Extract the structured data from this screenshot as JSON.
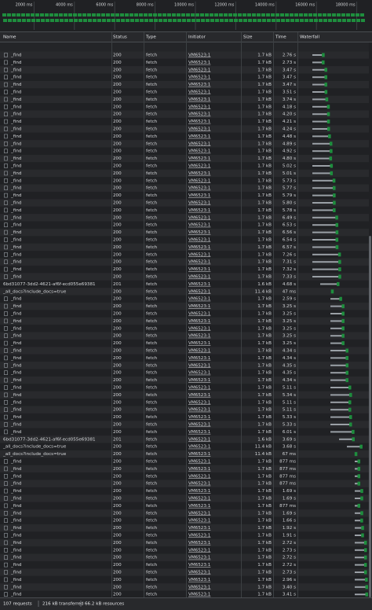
{
  "overview": {
    "ticks": [
      "2000 ms",
      "4000 ms",
      "6000 ms",
      "8000 ms",
      "10000 ms",
      "12000 ms",
      "14000 ms",
      "16000 ms",
      "18000 ms"
    ]
  },
  "columns": [
    "Name",
    "Status",
    "Type",
    "Initiator",
    "Size",
    "Time",
    "Waterfall"
  ],
  "rows": [
    [
      "_find",
      "200",
      "fetch",
      "VM6523:1",
      "1.7 kB",
      "2.76 s"
    ],
    [
      "_find",
      "200",
      "fetch",
      "VM6523:1",
      "1.7 kB",
      "2.73 s"
    ],
    [
      "_find",
      "200",
      "fetch",
      "VM6523:1",
      "1.7 kB",
      "3.47 s"
    ],
    [
      "_find",
      "200",
      "fetch",
      "VM6523:1",
      "1.7 kB",
      "3.47 s"
    ],
    [
      "_find",
      "200",
      "fetch",
      "VM6523:1",
      "1.7 kB",
      "3.47 s"
    ],
    [
      "_find",
      "200",
      "fetch",
      "VM6523:1",
      "1.7 kB",
      "3.51 s"
    ],
    [
      "_find",
      "200",
      "fetch",
      "VM6523:1",
      "1.7 kB",
      "3.74 s"
    ],
    [
      "_find",
      "200",
      "fetch",
      "VM6523:1",
      "1.7 kB",
      "4.18 s"
    ],
    [
      "_find",
      "200",
      "fetch",
      "VM6523:1",
      "1.7 kB",
      "4.20 s"
    ],
    [
      "_find",
      "200",
      "fetch",
      "VM6523:1",
      "1.7 kB",
      "4.21 s"
    ],
    [
      "_find",
      "200",
      "fetch",
      "VM6523:1",
      "1.7 kB",
      "4.24 s"
    ],
    [
      "_find",
      "200",
      "fetch",
      "VM6523:1",
      "1.7 kB",
      "4.48 s"
    ],
    [
      "_find",
      "200",
      "fetch",
      "VM6523:1",
      "1.7 kB",
      "4.89 s"
    ],
    [
      "_find",
      "200",
      "fetch",
      "VM6523:1",
      "1.7 kB",
      "4.92 s"
    ],
    [
      "_find",
      "200",
      "fetch",
      "VM6523:1",
      "1.7 kB",
      "4.80 s"
    ],
    [
      "_find",
      "200",
      "fetch",
      "VM6523:1",
      "1.7 kB",
      "5.02 s"
    ],
    [
      "_find",
      "200",
      "fetch",
      "VM6523:1",
      "1.7 kB",
      "5.01 s"
    ],
    [
      "_find",
      "200",
      "fetch",
      "VM6523:1",
      "1.7 kB",
      "5.73 s"
    ],
    [
      "_find",
      "200",
      "fetch",
      "VM6523:1",
      "1.7 kB",
      "5.77 s"
    ],
    [
      "_find",
      "200",
      "fetch",
      "VM6523:1",
      "1.7 kB",
      "5.79 s"
    ],
    [
      "_find",
      "200",
      "fetch",
      "VM6523:1",
      "1.7 kB",
      "5.80 s"
    ],
    [
      "_find",
      "200",
      "fetch",
      "VM6523:1",
      "1.7 kB",
      "5.78 s"
    ],
    [
      "_find",
      "200",
      "fetch",
      "VM6523:1",
      "1.7 kB",
      "6.49 s"
    ],
    [
      "_find",
      "200",
      "fetch",
      "VM6523:1",
      "1.7 kB",
      "6.53 s"
    ],
    [
      "_find",
      "200",
      "fetch",
      "VM6523:1",
      "1.7 kB",
      "6.56 s"
    ],
    [
      "_find",
      "200",
      "fetch",
      "VM6523:1",
      "1.7 kB",
      "6.54 s"
    ],
    [
      "_find",
      "200",
      "fetch",
      "VM6523:1",
      "1.7 kB",
      "6.57 s"
    ],
    [
      "_find",
      "200",
      "fetch",
      "VM6523:1",
      "1.7 kB",
      "7.26 s"
    ],
    [
      "_find",
      "200",
      "fetch",
      "VM6523:1",
      "1.7 kB",
      "7.31 s"
    ],
    [
      "_find",
      "200",
      "fetch",
      "VM6523:1",
      "1.7 kB",
      "7.32 s"
    ],
    [
      "_find",
      "200",
      "fetch",
      "VM6523:1",
      "1.7 kB",
      "7.33 s"
    ],
    [
      "6bd31077-3dd2-4621-af6f-ecd055e69381",
      "201",
      "fetch",
      "VM6523:1",
      "1.6 kB",
      "4.68 s"
    ],
    [
      "_all_docs?include_docs=true",
      "200",
      "fetch",
      "VM6523:1",
      "11.4 kB",
      "47 ms"
    ],
    [
      "_find",
      "200",
      "fetch",
      "VM6523:1",
      "1.7 kB",
      "2.59 s"
    ],
    [
      "_find",
      "200",
      "fetch",
      "VM6523:1",
      "1.7 kB",
      "3.25 s"
    ],
    [
      "_find",
      "200",
      "fetch",
      "VM6523:1",
      "1.7 kB",
      "3.25 s"
    ],
    [
      "_find",
      "200",
      "fetch",
      "VM6523:1",
      "1.7 kB",
      "3.25 s"
    ],
    [
      "_find",
      "200",
      "fetch",
      "VM6523:1",
      "1.7 kB",
      "3.25 s"
    ],
    [
      "_find",
      "200",
      "fetch",
      "VM6523:1",
      "1.7 kB",
      "3.25 s"
    ],
    [
      "_find",
      "200",
      "fetch",
      "VM6523:1",
      "1.7 kB",
      "3.25 s"
    ],
    [
      "_find",
      "200",
      "fetch",
      "VM6523:1",
      "1.7 kB",
      "4.34 s"
    ],
    [
      "_find",
      "200",
      "fetch",
      "VM6523:1",
      "1.7 kB",
      "4.34 s"
    ],
    [
      "_find",
      "200",
      "fetch",
      "VM6523:1",
      "1.7 kB",
      "4.35 s"
    ],
    [
      "_find",
      "200",
      "fetch",
      "VM6523:1",
      "1.7 kB",
      "4.35 s"
    ],
    [
      "_find",
      "200",
      "fetch",
      "VM6523:1",
      "1.7 kB",
      "4.34 s"
    ],
    [
      "_find",
      "200",
      "fetch",
      "VM6523:1",
      "1.7 kB",
      "5.11 s"
    ],
    [
      "_find",
      "200",
      "fetch",
      "VM6523:1",
      "1.7 kB",
      "5.34 s"
    ],
    [
      "_find",
      "200",
      "fetch",
      "VM6523:1",
      "1.7 kB",
      "5.11 s"
    ],
    [
      "_find",
      "200",
      "fetch",
      "VM6523:1",
      "1.7 kB",
      "5.11 s"
    ],
    [
      "_find",
      "200",
      "fetch",
      "VM6523:1",
      "1.7 kB",
      "5.33 s"
    ],
    [
      "_find",
      "200",
      "fetch",
      "VM6523:1",
      "1.7 kB",
      "5.33 s"
    ],
    [
      "_find",
      "200",
      "fetch",
      "VM6523:1",
      "1.7 kB",
      "6.01 s"
    ],
    [
      "6bd31077-3dd2-4621-af6f-ecd055e69381",
      "201",
      "fetch",
      "VM6523:1",
      "1.6 kB",
      "3.69 s"
    ],
    [
      "_all_docs?include_docs=true",
      "200",
      "fetch",
      "VM6523:1",
      "11.4 kB",
      "3.68 s"
    ],
    [
      "_all_docs?include_docs=true",
      "200",
      "fetch",
      "VM6523:1",
      "11.4 kB",
      "67 ms"
    ],
    [
      "_find",
      "200",
      "fetch",
      "VM6523:1",
      "1.7 kB",
      "877 ms"
    ],
    [
      "_find",
      "200",
      "fetch",
      "VM6523:1",
      "1.7 kB",
      "877 ms"
    ],
    [
      "_find",
      "200",
      "fetch",
      "VM6523:1",
      "1.7 kB",
      "877 ms"
    ],
    [
      "_find",
      "200",
      "fetch",
      "VM6523:1",
      "1.7 kB",
      "877 ms"
    ],
    [
      "_find",
      "200",
      "fetch",
      "VM6523:1",
      "1.7 kB",
      "1.69 s"
    ],
    [
      "_find",
      "200",
      "fetch",
      "VM6523:1",
      "1.7 kB",
      "1.69 s"
    ],
    [
      "_find",
      "200",
      "fetch",
      "VM6523:1",
      "1.7 kB",
      "877 ms"
    ],
    [
      "_find",
      "200",
      "fetch",
      "VM6523:1",
      "1.7 kB",
      "1.69 s"
    ],
    [
      "_find",
      "200",
      "fetch",
      "VM6523:1",
      "1.7 kB",
      "1.66 s"
    ],
    [
      "_find",
      "200",
      "fetch",
      "VM6523:1",
      "1.7 kB",
      "1.92 s"
    ],
    [
      "_find",
      "200",
      "fetch",
      "VM6523:1",
      "1.7 kB",
      "1.91 s"
    ],
    [
      "_find",
      "200",
      "fetch",
      "VM6523:1",
      "1.7 kB",
      "2.72 s"
    ],
    [
      "_find",
      "200",
      "fetch",
      "VM6523:1",
      "1.7 kB",
      "2.73 s"
    ],
    [
      "_find",
      "200",
      "fetch",
      "VM6523:1",
      "1.7 kB",
      "2.72 s"
    ],
    [
      "_find",
      "200",
      "fetch",
      "VM6523:1",
      "1.7 kB",
      "2.72 s"
    ],
    [
      "_find",
      "200",
      "fetch",
      "VM6523:1",
      "1.7 kB",
      "2.73 s"
    ],
    [
      "_find",
      "200",
      "fetch",
      "VM6523:1",
      "1.7 kB",
      "2.96 s"
    ],
    [
      "_find",
      "200",
      "fetch",
      "VM6523:1",
      "1.7 kB",
      "3.40 s"
    ],
    [
      "_find",
      "200",
      "fetch",
      "VM6523:1",
      "1.7 kB",
      "3.41 s"
    ]
  ],
  "footer": [
    "107 requests",
    "216 kB transferred",
    "66.2 kB resources"
  ]
}
